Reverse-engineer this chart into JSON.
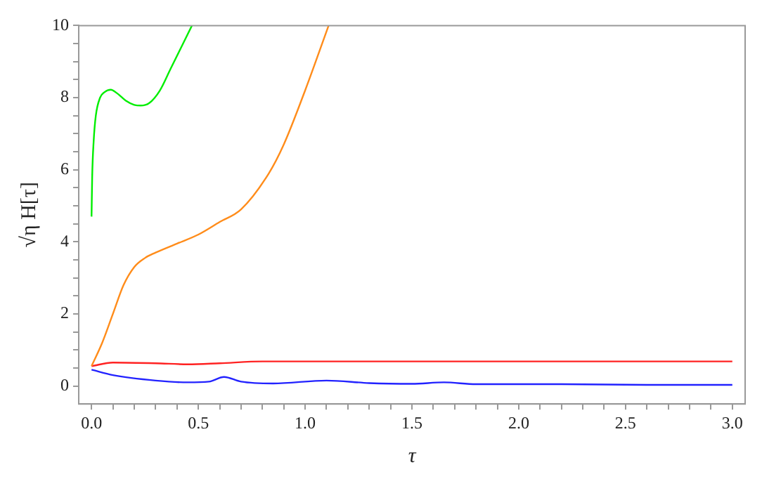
{
  "chart_data": {
    "type": "line",
    "xlabel": "τ",
    "ylabel": "√η H[τ]",
    "xlim": [
      -0.06,
      3.06
    ],
    "ylim": [
      -0.5,
      10
    ],
    "xticks": [
      {
        "value": 0,
        "label": "0.0"
      },
      {
        "value": 0.1,
        "label": null
      },
      {
        "value": 0.2,
        "label": null
      },
      {
        "value": 0.3,
        "label": null
      },
      {
        "value": 0.4,
        "label": null
      },
      {
        "value": 0.5,
        "label": "0.5"
      },
      {
        "value": 0.6,
        "label": null
      },
      {
        "value": 0.7,
        "label": null
      },
      {
        "value": 0.8,
        "label": null
      },
      {
        "value": 0.9,
        "label": null
      },
      {
        "value": 1,
        "label": "1.0"
      },
      {
        "value": 1.1,
        "label": null
      },
      {
        "value": 1.2,
        "label": null
      },
      {
        "value": 1.3,
        "label": null
      },
      {
        "value": 1.4,
        "label": null
      },
      {
        "value": 1.5,
        "label": "1.5"
      },
      {
        "value": 1.6,
        "label": null
      },
      {
        "value": 1.7,
        "label": null
      },
      {
        "value": 1.8,
        "label": null
      },
      {
        "value": 1.9,
        "label": null
      },
      {
        "value": 2,
        "label": "2.0"
      },
      {
        "value": 2.1,
        "label": null
      },
      {
        "value": 2.2,
        "label": null
      },
      {
        "value": 2.3,
        "label": null
      },
      {
        "value": 2.4,
        "label": null
      },
      {
        "value": 2.5,
        "label": "2.5"
      },
      {
        "value": 2.6,
        "label": null
      },
      {
        "value": 2.7,
        "label": null
      },
      {
        "value": 2.8,
        "label": null
      },
      {
        "value": 2.9,
        "label": null
      },
      {
        "value": 3,
        "label": "3.0"
      }
    ],
    "yticks": [
      0,
      {
        "value": 0.5,
        "label": null
      },
      {
        "value": 1,
        "label": null
      },
      {
        "value": 1.5,
        "label": null
      },
      2,
      {
        "value": 2.5,
        "label": null
      },
      {
        "value": 3,
        "label": null
      },
      {
        "value": 3.5,
        "label": null
      },
      4,
      {
        "value": 4.5,
        "label": null
      },
      {
        "value": 5,
        "label": null
      },
      {
        "value": 5.5,
        "label": null
      },
      6,
      {
        "value": 6.5,
        "label": null
      },
      {
        "value": 7,
        "label": null
      },
      {
        "value": 7.5,
        "label": null
      },
      8,
      {
        "value": 8.5,
        "label": null
      },
      {
        "value": 9,
        "label": null
      },
      {
        "value": 9.5,
        "label": null
      },
      10
    ],
    "grid": false,
    "legend": false,
    "marker": "none",
    "line_style": "solid",
    "series": [
      {
        "color": "#00ee00",
        "x": [
          0,
          0.003,
          0.01,
          0.02,
          0.04,
          0.06,
          0.09,
          0.12,
          0.16,
          0.2,
          0.23,
          0.27,
          0.32,
          0.37,
          0.42,
          0.47
        ],
        "values": [
          4.7,
          5.8,
          6.8,
          7.5,
          8.0,
          8.15,
          8.22,
          8.12,
          7.92,
          7.8,
          7.78,
          7.85,
          8.2,
          8.8,
          9.4,
          10
        ]
      },
      {
        "color": "#ff8c1a",
        "x": [
          0,
          0.05,
          0.1,
          0.15,
          0.2,
          0.25,
          0.3,
          0.4,
          0.5,
          0.6,
          0.7,
          0.83,
          0.9,
          1.0,
          1.11
        ],
        "values": [
          0.55,
          1.2,
          2.0,
          2.8,
          3.3,
          3.55,
          3.7,
          3.95,
          4.2,
          4.55,
          4.9,
          5.9,
          6.7,
          8.2,
          10
        ]
      },
      {
        "color": "#ff2222",
        "x": [
          0,
          0.1,
          0.3,
          0.45,
          0.6,
          0.8,
          1.0,
          3.0
        ],
        "values": [
          0.55,
          0.65,
          0.63,
          0.6,
          0.63,
          0.68,
          0.68,
          0.68
        ]
      },
      {
        "color": "#2222ff",
        "x": [
          0,
          0.1,
          0.3,
          0.45,
          0.55,
          0.62,
          0.7,
          0.85,
          1.1,
          1.3,
          1.5,
          1.65,
          1.8,
          2.2,
          2.6,
          3.0
        ],
        "values": [
          0.45,
          0.3,
          0.15,
          0.1,
          0.12,
          0.25,
          0.12,
          0.07,
          0.15,
          0.08,
          0.06,
          0.1,
          0.05,
          0.05,
          0.03,
          0.03
        ]
      }
    ]
  }
}
